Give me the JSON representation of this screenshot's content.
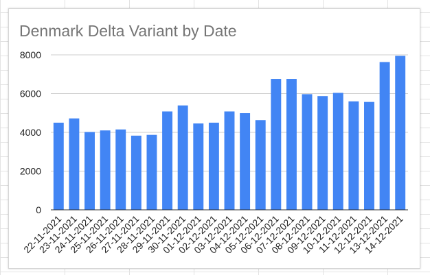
{
  "chart_data": {
    "type": "bar",
    "title": "Denmark Delta Variant by Date",
    "xlabel": "",
    "ylabel": "",
    "categories": [
      "22-11-2021",
      "23-11-2021",
      "24-11-2021",
      "25-11-2021",
      "26-11-2021",
      "27-11-2021",
      "28-11-2021",
      "29-11-2021",
      "30-11-2021",
      "01-12-2021",
      "02-12-2021",
      "03-12-2021",
      "04-12-2021",
      "05-12-2021",
      "06-12-2021",
      "07-12-2021",
      "08-12-2021",
      "09-12-2021",
      "10-12-2021",
      "11-12-2021",
      "12-12-2021",
      "13-12-2021",
      "14-12-2021"
    ],
    "values": [
      4500,
      4720,
      4020,
      4100,
      4150,
      3830,
      3870,
      5080,
      5390,
      4460,
      4500,
      5080,
      4990,
      4630,
      6760,
      6760,
      5970,
      5870,
      6040,
      5600,
      5570,
      7630,
      7950
    ],
    "ylim": [
      0,
      8000
    ],
    "yticks": [
      "0",
      "2000",
      "4000",
      "6000",
      "8000"
    ],
    "grid": true,
    "legend": "none",
    "bar_color": "#4285f4",
    "grid_color": "#cccccc"
  }
}
